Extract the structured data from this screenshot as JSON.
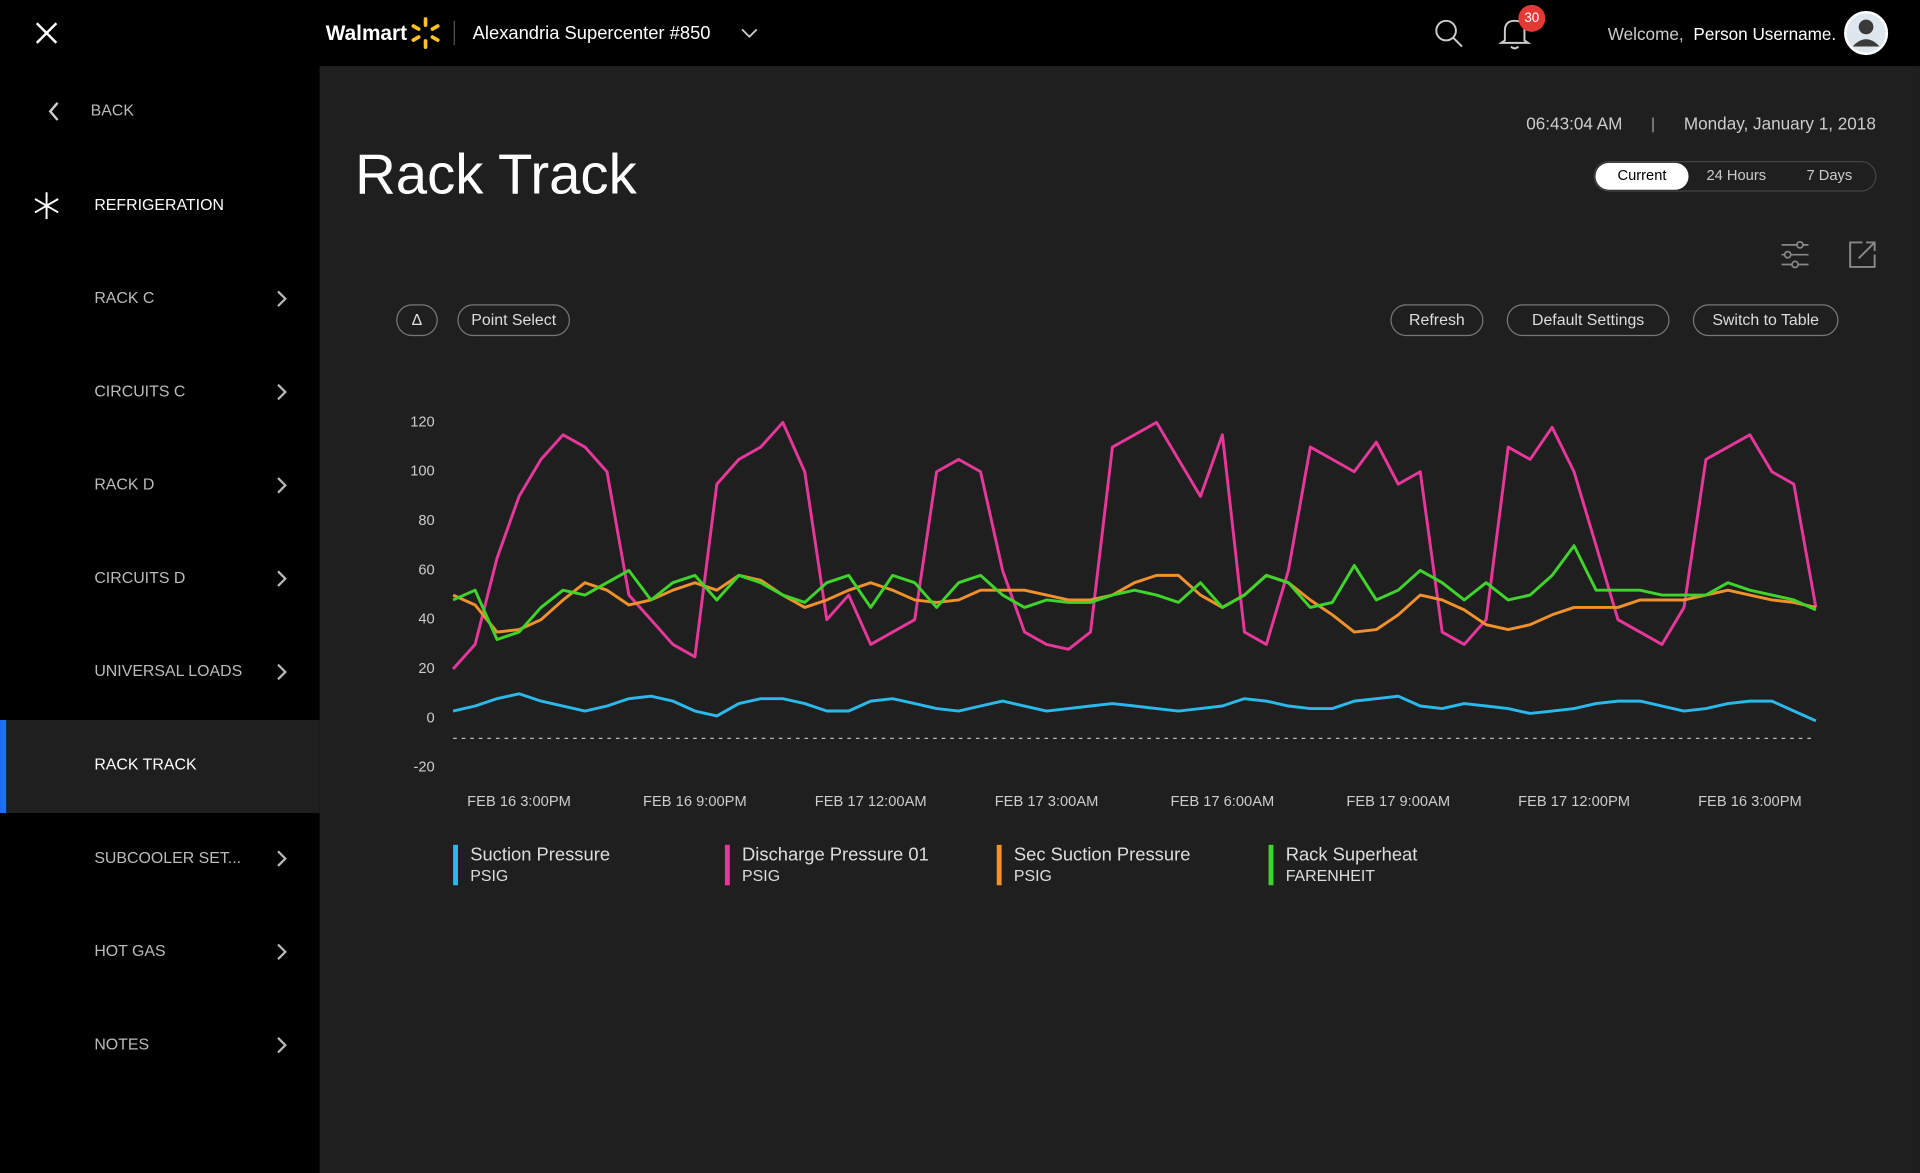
{
  "topbar": {
    "brand": "Walmart",
    "store": "Alexandria Supercenter #850",
    "notifications": "30",
    "welcome": "Welcome,",
    "user": "Person Username."
  },
  "sidebar": {
    "back": "BACK",
    "section": "REFRIGERATION",
    "items": [
      "RACK C",
      "CIRCUITS C",
      "RACK D",
      "CIRCUITS D",
      "UNIVERSAL LOADS",
      "RACK TRACK",
      "SUBCOOLER SET...",
      "HOT GAS",
      "NOTES"
    ],
    "active_index": 5
  },
  "header": {
    "time": "06:43:04 AM",
    "date": "Monday, January 1, 2018",
    "title": "Rack Track",
    "tabs": [
      "Current",
      "24 Hours",
      "7 Days"
    ],
    "active_tab": 0
  },
  "toolbar": {
    "left": [
      "Δ",
      "Point Select"
    ],
    "right": [
      "Refresh",
      "Default Settings",
      "Switch to Table"
    ]
  },
  "chart_data": {
    "type": "line",
    "categories": [
      null,
      null,
      null,
      "FEB 16 3:00PM",
      null,
      null,
      null,
      null,
      null,
      null,
      null,
      "FEB 16 9:00PM",
      null,
      null,
      null,
      null,
      null,
      null,
      null,
      "FEB 17 12:00AM",
      null,
      null,
      null,
      null,
      null,
      null,
      null,
      "FEB 17 3:00AM",
      null,
      null,
      null,
      null,
      null,
      null,
      null,
      "FEB 17 6:00AM",
      null,
      null,
      null,
      null,
      null,
      null,
      null,
      "FEB 17 9:00AM",
      null,
      null,
      null,
      null,
      null,
      null,
      null,
      "FEB 17 12:00PM",
      null,
      null,
      null,
      null,
      null,
      null,
      null,
      "FEB 16 3:00PM",
      null,
      null,
      null
    ],
    "series": [
      {
        "name": "Suction Pressure",
        "unit": "PSIG",
        "color": "#2bb8ea",
        "values": [
          3,
          5,
          8,
          10,
          7,
          5,
          3,
          5,
          8,
          9,
          7,
          3,
          1,
          6,
          8,
          8,
          6,
          3,
          3,
          7,
          8,
          6,
          4,
          3,
          5,
          7,
          5,
          3,
          4,
          5,
          6,
          5,
          4,
          3,
          4,
          5,
          8,
          7,
          5,
          4,
          4,
          7,
          8,
          9,
          5,
          4,
          6,
          5,
          4,
          2,
          3,
          4,
          6,
          7,
          7,
          5,
          3,
          4,
          6,
          7,
          7,
          3,
          -1
        ]
      },
      {
        "name": "Discharge Pressure 01",
        "unit": "PSIG",
        "color": "#e8379b",
        "values": [
          20,
          30,
          65,
          90,
          105,
          115,
          110,
          100,
          50,
          40,
          30,
          25,
          95,
          105,
          110,
          120,
          100,
          40,
          50,
          30,
          35,
          40,
          100,
          105,
          100,
          60,
          35,
          30,
          28,
          35,
          110,
          115,
          120,
          105,
          90,
          115,
          35,
          30,
          60,
          110,
          105,
          100,
          112,
          95,
          100,
          35,
          30,
          40,
          110,
          105,
          118,
          100,
          70,
          40,
          35,
          30,
          45,
          105,
          110,
          115,
          100,
          95,
          45
        ]
      },
      {
        "name": "Sec Suction Pressure",
        "unit": "PSIG",
        "color": "#f0912b",
        "values": [
          50,
          46,
          35,
          36,
          40,
          48,
          55,
          52,
          46,
          48,
          52,
          55,
          52,
          58,
          56,
          50,
          45,
          48,
          52,
          55,
          52,
          48,
          47,
          48,
          52,
          52,
          52,
          50,
          48,
          48,
          50,
          55,
          58,
          58,
          50,
          45,
          50,
          58,
          55,
          48,
          42,
          35,
          36,
          42,
          50,
          48,
          44,
          38,
          36,
          38,
          42,
          45,
          45,
          45,
          48,
          48,
          48,
          50,
          52,
          50,
          48,
          47,
          45
        ]
      },
      {
        "name": "Rack Superheat",
        "unit": "FARENHEIT",
        "color": "#3fd42b",
        "values": [
          48,
          52,
          32,
          35,
          45,
          52,
          50,
          55,
          60,
          48,
          55,
          58,
          48,
          58,
          55,
          50,
          47,
          55,
          58,
          45,
          58,
          55,
          45,
          55,
          58,
          50,
          45,
          48,
          47,
          47,
          50,
          52,
          50,
          47,
          55,
          45,
          50,
          58,
          55,
          45,
          47,
          62,
          48,
          52,
          60,
          55,
          48,
          55,
          48,
          50,
          58,
          70,
          52,
          52,
          52,
          50,
          50,
          50,
          55,
          52,
          50,
          48,
          44
        ]
      }
    ],
    "ylim": [
      -20,
      120
    ],
    "yticks": [
      -20,
      0,
      20,
      40,
      60,
      80,
      100,
      120
    ],
    "grid": false
  }
}
